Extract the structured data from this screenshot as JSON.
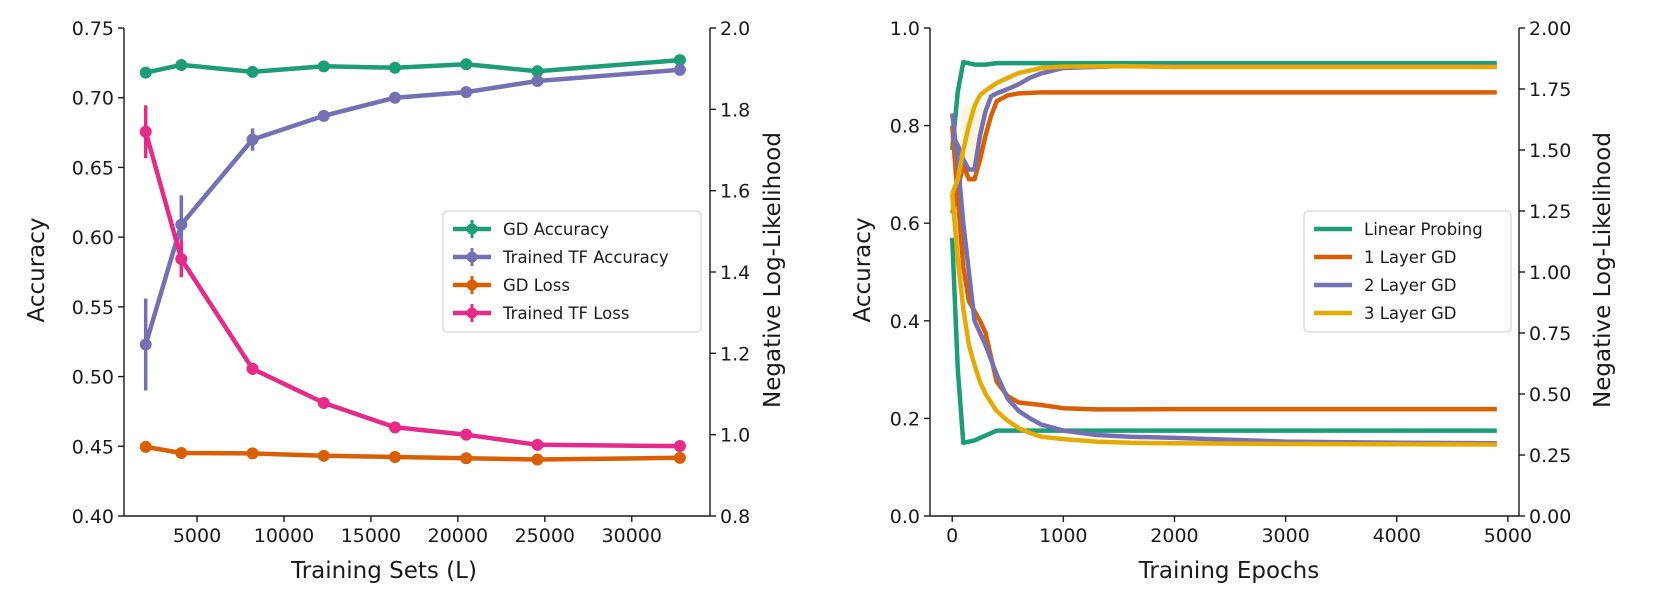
{
  "chart_data": [
    {
      "type": "line",
      "xlabel": "Training Sets (L)",
      "ylabel": "Accuracy",
      "y2label": "Negative Log-Likelihood",
      "xlim": [
        800,
        34500
      ],
      "ylim": [
        0.4,
        0.75
      ],
      "y2lim": [
        0.8,
        2.0
      ],
      "xticks": [
        5000,
        10000,
        15000,
        20000,
        25000,
        30000
      ],
      "xtick_labels": [
        "5000",
        "10000",
        "15000",
        "20000",
        "25000",
        "30000"
      ],
      "yticks": [
        0.4,
        0.45,
        0.5,
        0.55,
        0.6,
        0.65,
        0.7,
        0.75
      ],
      "ytick_labels": [
        "0.40",
        "0.45",
        "0.50",
        "0.55",
        "0.60",
        "0.65",
        "0.70",
        "0.75"
      ],
      "y2ticks": [
        0.8,
        1.0,
        1.2,
        1.4,
        1.6,
        1.8,
        2.0
      ],
      "y2tick_labels": [
        "0.8",
        "1.0",
        "1.2",
        "1.4",
        "1.6",
        "1.8",
        "2.0"
      ],
      "x": [
        2048,
        4096,
        8192,
        12288,
        16384,
        20480,
        24576,
        32768
      ],
      "legend_position": "center-right",
      "series": [
        {
          "name": "GD Accuracy",
          "axis": "left",
          "color": "#1b9e77",
          "values": [
            0.718,
            0.7235,
            0.7185,
            0.7225,
            0.7215,
            0.724,
            0.719,
            0.727
          ],
          "errors": [
            0.002,
            0.002,
            0.003,
            0.002,
            0.002,
            0.002,
            0.002,
            0.002
          ]
        },
        {
          "name": "Trained TF Accuracy",
          "axis": "left",
          "color": "#7570b3",
          "values": [
            0.523,
            0.609,
            0.67,
            0.687,
            0.7,
            0.704,
            0.712,
            0.72
          ],
          "errors": [
            0.033,
            0.021,
            0.008,
            0.004,
            0.003,
            0.003,
            0.003,
            0.003
          ]
        },
        {
          "name": "GD Loss",
          "axis": "right",
          "color": "#d95f02",
          "values": [
            0.97,
            0.955,
            0.954,
            0.948,
            0.945,
            0.942,
            0.939,
            0.943
          ],
          "errors": [
            0.005,
            0.004,
            0.004,
            0.004,
            0.004,
            0.004,
            0.004,
            0.004
          ]
        },
        {
          "name": "Trained TF Loss",
          "axis": "right",
          "color": "#e7298a",
          "values": [
            1.745,
            1.432,
            1.162,
            1.078,
            1.018,
            1.0,
            0.975,
            0.972
          ],
          "errors": [
            0.065,
            0.045,
            0.015,
            0.012,
            0.009,
            0.008,
            0.007,
            0.007
          ]
        }
      ]
    },
    {
      "type": "line",
      "xlabel": "Training Epochs",
      "ylabel": "Accuracy",
      "y2label": "Negative Log-Likelihood",
      "xlim": [
        -200,
        5100
      ],
      "ylim": [
        0.0,
        1.0
      ],
      "y2lim": [
        0.0,
        2.0
      ],
      "xticks": [
        0,
        1000,
        2000,
        3000,
        4000,
        5000
      ],
      "xtick_labels": [
        "0",
        "1000",
        "2000",
        "3000",
        "4000",
        "5000"
      ],
      "yticks": [
        0.0,
        0.2,
        0.4,
        0.6,
        0.8,
        1.0
      ],
      "ytick_labels": [
        "0.0",
        "0.2",
        "0.4",
        "0.6",
        "0.8",
        "1.0"
      ],
      "y2ticks": [
        0.0,
        0.25,
        0.5,
        0.75,
        1.0,
        1.25,
        1.5,
        1.75,
        2.0
      ],
      "y2tick_labels": [
        "0.00",
        "0.25",
        "0.50",
        "0.75",
        "1.00",
        "1.25",
        "1.50",
        "1.75",
        "2.00"
      ],
      "legend_position": "center-right",
      "series": [
        {
          "name": "Linear Probing",
          "color": "#1b9e77",
          "accuracy": {
            "x": [
              0,
              50,
              100,
              200,
              300,
              400,
              600,
              1000,
              2000,
              3000,
              4000,
              4900
            ],
            "values": [
              0.75,
              0.87,
              0.93,
              0.925,
              0.925,
              0.928,
              0.928,
              0.928,
              0.928,
              0.928,
              0.928,
              0.928
            ]
          },
          "loss": {
            "x": [
              0,
              50,
              100,
              200,
              300,
              400,
              600,
              1000,
              2000,
              3000,
              4000,
              4900
            ],
            "values": [
              1.14,
              0.6,
              0.3,
              0.31,
              0.33,
              0.35,
              0.35,
              0.35,
              0.35,
              0.35,
              0.35,
              0.35
            ]
          }
        },
        {
          "name": "1 Layer GD",
          "color": "#d95f02",
          "accuracy": {
            "x": [
              0,
              50,
              100,
              150,
              200,
              250,
              300,
              350,
              400,
              500,
              600,
              800,
              1000,
              1400,
              2000,
              3000,
              4000,
              4900
            ],
            "values": [
              0.62,
              0.67,
              0.72,
              0.69,
              0.69,
              0.73,
              0.78,
              0.82,
              0.85,
              0.862,
              0.866,
              0.868,
              0.868,
              0.868,
              0.868,
              0.868,
              0.868,
              0.868
            ]
          },
          "loss": {
            "x": [
              0,
              50,
              100,
              150,
              200,
              250,
              300,
              350,
              400,
              500,
              600,
              800,
              1000,
              1300,
              1600,
              2000,
              3000,
              4000,
              4900
            ],
            "values": [
              1.6,
              1.3,
              1.02,
              0.88,
              0.84,
              0.8,
              0.75,
              0.65,
              0.55,
              0.49,
              0.465,
              0.455,
              0.442,
              0.437,
              0.437,
              0.438,
              0.438,
              0.438,
              0.438
            ]
          }
        },
        {
          "name": "2 Layer GD",
          "color": "#7570b3",
          "accuracy": {
            "x": [
              0,
              50,
              100,
              150,
              200,
              250,
              300,
              350,
              400,
              500,
              600,
              700,
              800,
              1000,
              1500,
              2000,
              3000,
              4000,
              4900
            ],
            "values": [
              0.78,
              0.76,
              0.73,
              0.71,
              0.71,
              0.78,
              0.83,
              0.86,
              0.866,
              0.875,
              0.885,
              0.898,
              0.907,
              0.918,
              0.922,
              0.922,
              0.922,
              0.922,
              0.922
            ]
          },
          "loss": {
            "x": [
              0,
              50,
              100,
              150,
              200,
              250,
              300,
              400,
              500,
              600,
              700,
              800,
              1000,
              1300,
              1600,
              2000,
              3000,
              4000,
              4900
            ],
            "values": [
              1.65,
              1.45,
              1.2,
              1.0,
              0.8,
              0.75,
              0.7,
              0.58,
              0.48,
              0.43,
              0.4,
              0.375,
              0.35,
              0.332,
              0.325,
              0.32,
              0.305,
              0.3,
              0.298
            ]
          }
        },
        {
          "name": "3 Layer GD",
          "color": "#e6ab02",
          "accuracy": {
            "x": [
              0,
              50,
              100,
              150,
              200,
              250,
              300,
              400,
              500,
              600,
              700,
              800,
              1000,
              1500,
              2000,
              3000,
              4000,
              4900
            ],
            "values": [
              0.66,
              0.69,
              0.75,
              0.8,
              0.84,
              0.862,
              0.872,
              0.887,
              0.898,
              0.908,
              0.913,
              0.918,
              0.921,
              0.922,
              0.92,
              0.92,
              0.92,
              0.92
            ]
          },
          "loss": {
            "x": [
              0,
              50,
              100,
              150,
              200,
              250,
              300,
              400,
              500,
              600,
              700,
              800,
              1000,
              1300,
              1600,
              2000,
              3000,
              4000,
              4900
            ],
            "values": [
              1.32,
              1.05,
              0.85,
              0.7,
              0.62,
              0.55,
              0.5,
              0.43,
              0.39,
              0.36,
              0.34,
              0.325,
              0.315,
              0.305,
              0.3,
              0.298,
              0.295,
              0.294,
              0.293
            ]
          }
        }
      ]
    }
  ]
}
